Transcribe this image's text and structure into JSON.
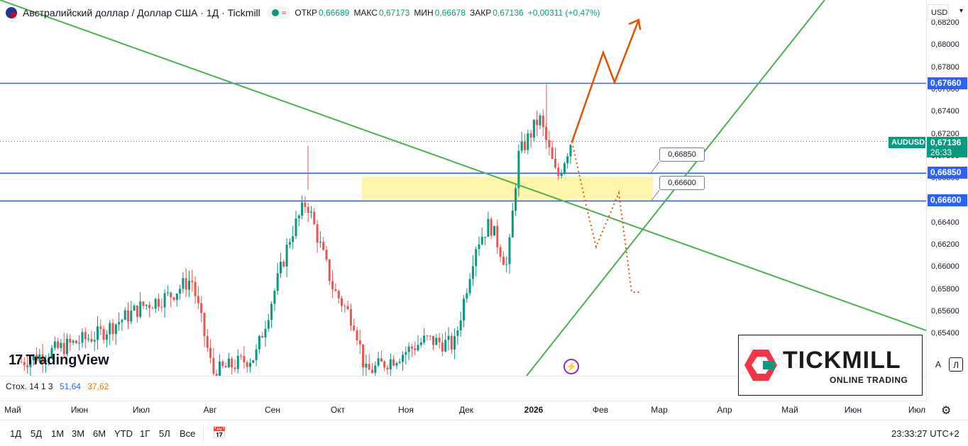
{
  "legend": {
    "title": "Австралийский доллар / Доллар США · 1Д · Tickmill",
    "open_label": "ОТКР",
    "open_value": "0,66689",
    "high_label": "МАКС",
    "high_value": "0,67173",
    "low_label": "МИН",
    "low_value": "0,66678",
    "close_label": "ЗАКР",
    "close_value": "0,67136",
    "change": "+0,00311 (+0,47%)"
  },
  "currency_select": "USD",
  "y_axis": {
    "ticks": [
      "0,68200",
      "0,68000",
      "0,67800",
      "0,67600",
      "0,67400",
      "0,67200",
      "0,67000",
      "0,66800",
      "0,66600",
      "0,66400",
      "0,66200",
      "0,66000",
      "0,65800",
      "0,65600",
      "0,65400"
    ],
    "level_labels": [
      {
        "text": "0,67660",
        "color": "#2962ff",
        "price": 0.6766
      },
      {
        "text": "0,66850",
        "color": "#2962ff",
        "price": 0.6685
      },
      {
        "text": "0,66600",
        "color": "#2962ff",
        "price": 0.666
      }
    ],
    "symbol": "AUDUSD",
    "last_price": "0,67136",
    "countdown": "26:33"
  },
  "callouts": [
    {
      "text": "0,66850"
    },
    {
      "text": "0,66600"
    }
  ],
  "x_axis": {
    "labels": [
      "Май",
      "Июн",
      "Июл",
      "Авг",
      "Сен",
      "Окт",
      "Ноя",
      "Дек",
      "2026",
      "Фев",
      "Мар",
      "Апр",
      "Май",
      "Июн",
      "Июл"
    ]
  },
  "indicator": {
    "name": "Стох. 14 1 3",
    "k": "51,64",
    "d": "37,62",
    "k_color": "#2962ff",
    "d_color": "#ff6d00"
  },
  "branding": {
    "tradingview": "TradingView",
    "broker": "TICKMILL",
    "broker_sub": "ONLINE TRADING",
    "broker_color": "#f23645"
  },
  "scale_buttons": {
    "auto": "A",
    "log": "Л"
  },
  "timeframes": [
    "1Д",
    "5Д",
    "1М",
    "3М",
    "6М",
    "YTD",
    "1Г",
    "5Л",
    "Все"
  ],
  "clock": "23:33:27 UTC+2",
  "colors": {
    "up": "#089981",
    "down": "#ef5350",
    "trend": "#4caf50",
    "level": "#2962ff",
    "zone": "#fff59d",
    "forecast": "#e65100"
  }
}
